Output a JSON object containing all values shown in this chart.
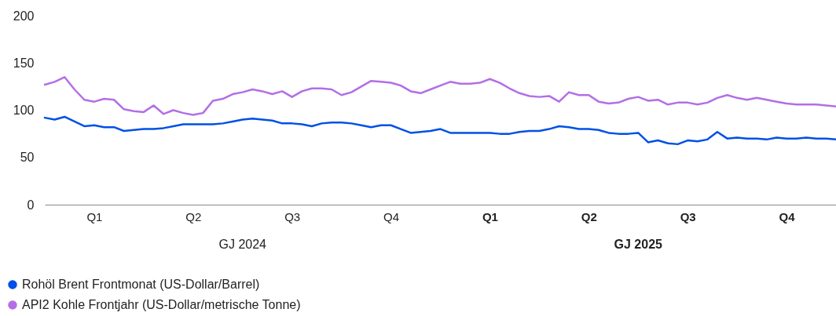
{
  "chart_data": {
    "type": "line",
    "annotations": [
      "GJ 2024",
      "GJ 2025"
    ],
    "categories": [
      null,
      null,
      null,
      null,
      null,
      "Q1",
      null,
      null,
      null,
      null,
      null,
      null,
      null,
      null,
      null,
      "Q2",
      null,
      null,
      null,
      null,
      null,
      null,
      null,
      null,
      null,
      "Q3",
      null,
      null,
      null,
      null,
      null,
      null,
      null,
      null,
      null,
      "Q4",
      null,
      null,
      null,
      null,
      null,
      null,
      null,
      null,
      null,
      "Q1",
      null,
      null,
      null,
      null,
      null,
      null,
      null,
      null,
      null,
      "Q2",
      null,
      null,
      null,
      null,
      null,
      null,
      null,
      null,
      null,
      "Q3",
      null,
      null,
      null,
      null,
      null,
      null,
      null,
      null,
      null,
      "Q4",
      null,
      null,
      null,
      null,
      null
    ],
    "ylim": [
      0,
      200
    ],
    "yticks": [
      0,
      50,
      100,
      150,
      200
    ],
    "legend": "bottom",
    "series": [
      {
        "name": "Rohöl Brent Frontmonat (US-Dollar/Barrel)",
        "color": "#0050e6",
        "values": [
          92,
          90,
          93,
          88,
          83,
          84,
          82,
          82,
          78,
          79,
          80,
          80,
          81,
          83,
          85,
          85,
          85,
          85,
          86,
          88,
          90,
          91,
          90,
          89,
          86,
          86,
          85,
          83,
          86,
          87,
          87,
          86,
          84,
          82,
          84,
          84,
          80,
          76,
          77,
          78,
          80,
          76,
          76,
          76,
          76,
          76,
          75,
          75,
          77,
          78,
          78,
          80,
          83,
          82,
          80,
          80,
          79,
          76,
          75,
          75,
          76,
          66,
          68,
          65,
          64,
          68,
          67,
          69,
          77,
          70,
          71,
          70,
          70,
          69,
          71,
          70,
          70,
          71,
          70,
          70,
          69
        ]
      },
      {
        "name": "API2 Kohle Frontjahr (US-Dollar/metrische Tonne)",
        "color": "#b36ee6",
        "values": [
          127,
          130,
          135,
          122,
          111,
          109,
          112,
          111,
          101,
          99,
          98,
          105,
          96,
          100,
          97,
          95,
          97,
          110,
          112,
          117,
          119,
          122,
          120,
          117,
          120,
          114,
          120,
          123,
          123,
          122,
          116,
          119,
          125,
          131,
          130,
          129,
          126,
          120,
          118,
          122,
          126,
          130,
          128,
          128,
          129,
          133,
          129,
          123,
          118,
          115,
          114,
          115,
          109,
          119,
          116,
          116,
          109,
          107,
          108,
          112,
          114,
          110,
          111,
          106,
          108,
          108,
          106,
          108,
          113,
          116,
          113,
          111,
          113,
          111,
          109,
          107,
          106,
          106,
          106,
          105,
          104
        ]
      }
    ]
  }
}
